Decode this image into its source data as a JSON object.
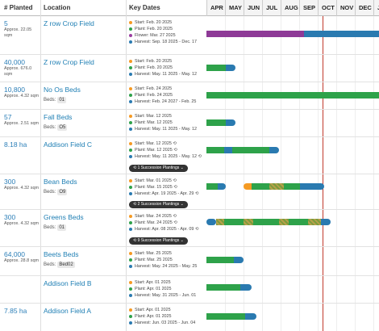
{
  "header": {
    "planted": "# Planted",
    "location": "Location",
    "key_dates": "Key Dates",
    "months": [
      "APR",
      "MAY",
      "JUN",
      "JUL",
      "AUG",
      "SEP",
      "OCT",
      "NOV",
      "DEC",
      "JA"
    ]
  },
  "rows": [
    {
      "planted": "5",
      "approx": "Approx. 22.05 sqm",
      "location": "Z row Crop Field",
      "beds_label": "",
      "beds": "",
      "dates": {
        "start": "Start: Feb. 20 2025",
        "plant": "Plant: Feb. 20 2025",
        "flower": "Flower: Mar. 27 2025",
        "harvest": "Harvest: Sep. 18 2025 - Dec. 17"
      },
      "succession": ""
    },
    {
      "planted": "40,000",
      "approx": "Approx. 676.0 sqm",
      "location": "Z row Crop Field",
      "beds_label": "",
      "beds": "",
      "dates": {
        "start": "Start: Feb. 20 2025",
        "plant": "Plant: Feb. 20 2025",
        "harvest": "Harvest: May. 11 2025 - May. 12"
      },
      "succession": ""
    },
    {
      "planted": "10,800",
      "approx": "Approx. 4.32 sqm",
      "location": "No Os Beds",
      "beds_label": "Beds:",
      "beds": "01",
      "dates": {
        "start": "Start: Feb. 24 2025",
        "plant": "Plant: Feb. 24 2025",
        "harvest": "Harvest: Feb. 24 2027 - Feb. 25"
      },
      "succession": ""
    },
    {
      "planted": "57",
      "approx": "Approx. 2.51 sqm",
      "location": "Fall Beds",
      "beds_label": "Beds:",
      "beds": "O5",
      "dates": {
        "start": "Start: Mar. 12 2025",
        "plant": "Plant: Mar. 12 2025",
        "harvest": "Harvest: May. 11 2025 - May. 12"
      },
      "succession": ""
    },
    {
      "planted": "8.18 ha",
      "approx": "",
      "location": "Addison Field C",
      "beds_label": "",
      "beds": "",
      "dates": {
        "start": "Start: Mar. 12 2025 ⟲",
        "plant": "Plant: Mar. 12 2025 ⟲",
        "harvest": "Harvest: May. 11 2025 - May. 12 ⟲"
      },
      "succession": "⟲ 1 Succession Plantings ⌄"
    },
    {
      "planted": "300",
      "approx": "Approx. 4.32 sqm",
      "location": "Bean Beds",
      "beds_label": "Beds:",
      "beds": "O9",
      "dates": {
        "start": "Start: Mar. 01 2025 ⟲",
        "plant": "Plant: Mar. 15 2025 ⟲",
        "harvest": "Harvest: Apr. 19 2025 - Apr. 29 ⟲"
      },
      "succession": "⟲ 2 Succession Plantings ⌄"
    },
    {
      "planted": "300",
      "approx": "Approx. 4.32 sqm",
      "location": "Greens Beds",
      "beds_label": "Beds:",
      "beds": "01",
      "dates": {
        "start": "Start: Mar. 24 2025 ⟲",
        "plant": "Plant: Mar. 24 2025 ⟲",
        "harvest": "Harvest: Apr. 08 2025 - Apr. 09 ⟲"
      },
      "succession": "⟲ 9 Succession Plantings ⌄"
    },
    {
      "planted": "64,000",
      "approx": "Approx. 28.8 sqm",
      "location": "Beets Beds",
      "beds_label": "Beds:",
      "beds": "Bed02",
      "dates": {
        "start": "Start: Mar. 25 2025",
        "plant": "Plant: Mar. 25 2025",
        "harvest": "Harvest: May. 24 2025 - May. 25"
      },
      "succession": ""
    },
    {
      "planted": "",
      "approx": "",
      "location": "Addison Field B",
      "beds_label": "",
      "beds": "",
      "dates": {
        "start": "Start: Apr. 01 2025",
        "plant": "Plant: Apr. 01 2025",
        "harvest": "Harvest: May. 31 2025 - Jun. 01"
      },
      "succession": ""
    },
    {
      "planted": "7.85 ha",
      "approx": "",
      "location": "Addison Field A",
      "beds_label": "",
      "beds": "",
      "dates": {
        "start": "Start: Apr. 01 2025",
        "plant": "Plant: Apr. 01 2025",
        "harvest": "Harvest: Jun. 03 2025 - Jun. 04"
      },
      "succession": ""
    }
  ],
  "colors": {
    "start": "#f59a23",
    "plant": "#2ea24a",
    "flower": "#9b3da1",
    "harvest": "#2a7ab0",
    "today": "#c0392b",
    "link": "#1f7fb4"
  }
}
